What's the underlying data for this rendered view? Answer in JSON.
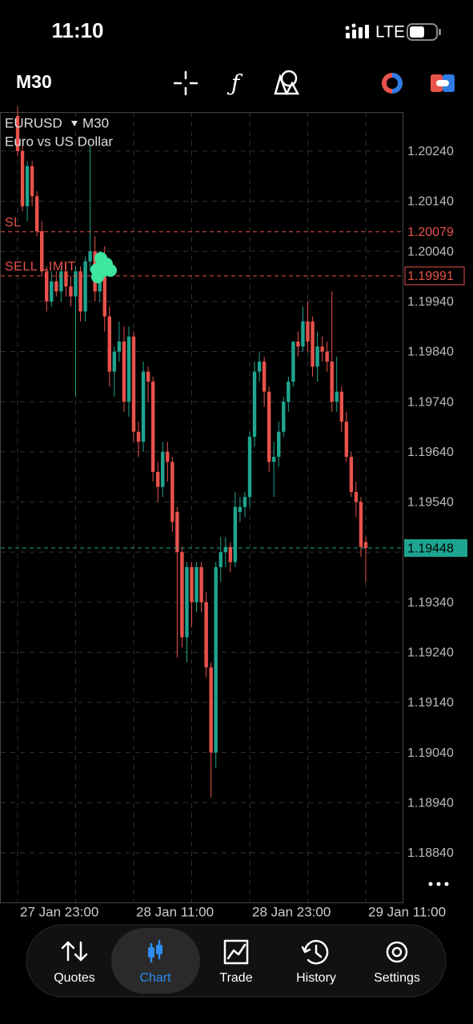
{
  "status_bar": {
    "time": "11:10",
    "network": "LTE"
  },
  "toolbar": {
    "timeframe": "M30"
  },
  "chart_data": {
    "type": "candlestick",
    "symbol": "EURUSD",
    "timeframe": "M30",
    "description": "Euro vs US Dollar",
    "up_color": "#1ea590",
    "down_color": "#e8524b",
    "open": [
      1.2031,
      1.2024,
      1.2013,
      1.2021,
      1.2015,
      1.2008,
      1.2,
      1.1994,
      1.1998,
      1.1996,
      1.2,
      1.1997,
      1.1995,
      1.2,
      1.1992,
      1.2002,
      1.2004,
      1.1996,
      1.2003,
      1.1991,
      1.198,
      1.1984,
      1.1986,
      1.1974,
      1.1987,
      1.1968,
      1.1966,
      1.198,
      1.1978,
      1.196,
      1.1957,
      1.1964,
      1.1962,
      1.1952,
      1.1944,
      1.1927,
      1.1941,
      1.1934,
      1.1941,
      1.1934,
      1.1921,
      1.1904,
      1.1941,
      1.1944,
      1.1945,
      1.1942,
      1.1952,
      1.1953,
      1.1955,
      1.1967,
      1.198,
      1.1982,
      1.1976,
      1.1962,
      1.1963,
      1.1968,
      1.1974,
      1.1978,
      1.1986,
      1.1985,
      1.199,
      1.199,
      1.1981,
      1.1985,
      1.1984,
      1.1982,
      1.1974,
      1.1976,
      1.197,
      1.1963,
      1.1956,
      1.1954,
      1.1946
    ],
    "high": [
      1.2033,
      1.2025,
      1.2022,
      1.2022,
      1.2016,
      1.201,
      1.2001,
      1.2,
      1.2,
      1.2001,
      1.2002,
      1.1999,
      1.2001,
      1.2001,
      1.2003,
      1.2025,
      1.2007,
      1.2004,
      1.2005,
      1.1993,
      1.1985,
      1.199,
      1.1989,
      1.1989,
      1.1988,
      1.197,
      1.1982,
      1.1981,
      1.1979,
      1.1962,
      1.1966,
      1.1966,
      1.1963,
      1.1953,
      1.1945,
      1.1942,
      1.1942,
      1.1942,
      1.1942,
      1.1936,
      1.1922,
      1.1942,
      1.1947,
      1.1947,
      1.1946,
      1.1956,
      1.1955,
      1.1956,
      1.1968,
      1.1982,
      1.1984,
      1.1983,
      1.1977,
      1.1966,
      1.197,
      1.1975,
      1.1979,
      1.1986,
      1.1988,
      1.1993,
      1.1994,
      1.1991,
      1.1988,
      1.1987,
      1.1986,
      1.1996,
      1.1983,
      1.1977,
      1.1972,
      1.1964,
      1.1958,
      1.1955,
      1.1947
    ],
    "low": [
      1.2023,
      1.2012,
      1.201,
      1.2013,
      1.2007,
      1.1999,
      1.1992,
      1.1993,
      1.1995,
      1.1994,
      1.1995,
      1.1993,
      1.1975,
      1.199,
      1.199,
      1.2,
      1.1994,
      1.1994,
      1.1988,
      1.1977,
      1.1975,
      1.1982,
      1.1972,
      1.1971,
      1.1966,
      1.1963,
      1.1964,
      1.1974,
      1.1958,
      1.1954,
      1.1955,
      1.1958,
      1.1948,
      1.1923,
      1.1925,
      1.1922,
      1.1929,
      1.1932,
      1.1932,
      1.1919,
      1.1895,
      1.1901,
      1.1938,
      1.1941,
      1.194,
      1.1941,
      1.195,
      1.1951,
      1.1953,
      1.1965,
      1.1978,
      1.1973,
      1.196,
      1.1955,
      1.1961,
      1.1967,
      1.1972,
      1.1977,
      1.1983,
      1.1984,
      1.1984,
      1.1979,
      1.1978,
      1.1982,
      1.198,
      1.1972,
      1.1972,
      1.1968,
      1.1962,
      1.1955,
      1.1951,
      1.1943,
      1.1938
    ],
    "close": [
      1.2024,
      1.2013,
      1.2021,
      1.2015,
      1.2008,
      1.2,
      1.1994,
      1.1998,
      1.1996,
      1.2,
      1.1997,
      1.1995,
      1.2,
      1.1992,
      1.2002,
      1.2004,
      1.1996,
      1.2003,
      1.1991,
      1.198,
      1.1984,
      1.1986,
      1.1974,
      1.1987,
      1.1968,
      1.1966,
      1.198,
      1.1978,
      1.196,
      1.1957,
      1.1964,
      1.1962,
      1.195,
      1.1944,
      1.1927,
      1.1941,
      1.1934,
      1.1941,
      1.1934,
      1.1921,
      1.1904,
      1.1941,
      1.1944,
      1.1945,
      1.1942,
      1.1953,
      1.1953,
      1.1955,
      1.1967,
      1.198,
      1.1982,
      1.1976,
      1.1962,
      1.1963,
      1.1968,
      1.1974,
      1.1978,
      1.1986,
      1.1985,
      1.199,
      1.1986,
      1.1981,
      1.1985,
      1.1984,
      1.1982,
      1.1974,
      1.1976,
      1.197,
      1.1963,
      1.1956,
      1.1954,
      1.1945,
      1.19448
    ],
    "ylim": [
      1.18741,
      1.20318
    ],
    "yticks": [
      {
        "value": 1.2024,
        "label": "1.20240"
      },
      {
        "value": 1.2014,
        "label": "1.20140"
      },
      {
        "value": 1.2004,
        "label": "1.20040"
      },
      {
        "value": 1.1994,
        "label": "1.19940"
      },
      {
        "value": 1.1984,
        "label": "1.19840"
      },
      {
        "value": 1.1974,
        "label": "1.19740"
      },
      {
        "value": 1.1964,
        "label": "1.19640"
      },
      {
        "value": 1.1954,
        "label": "1.19540"
      },
      {
        "value": 1.1944,
        "label": "1.19440"
      },
      {
        "value": 1.1934,
        "label": "1.19340"
      },
      {
        "value": 1.1924,
        "label": "1.19240"
      },
      {
        "value": 1.1914,
        "label": "1.19140"
      },
      {
        "value": 1.1904,
        "label": "1.19040"
      },
      {
        "value": 1.1894,
        "label": "1.18940"
      },
      {
        "value": 1.1884,
        "label": "1.18840"
      }
    ],
    "xticks": [
      {
        "value": 0,
        "label": "27 Jan 23:00"
      },
      {
        "value": 12,
        "label": null
      },
      {
        "value": 24,
        "label": "28 Jan 11:00"
      },
      {
        "value": 36,
        "label": null
      },
      {
        "value": 48,
        "label": "28 Jan 23:00"
      },
      {
        "value": 60,
        "label": null
      },
      {
        "value": 72,
        "label": "29 Jan 11:00"
      }
    ],
    "grid": true,
    "levels": [
      {
        "name": "SL",
        "value": 1.20079,
        "label": "1.20079",
        "color": "#e8524b",
        "box": "none"
      },
      {
        "name": "SELL LIMIT",
        "value": 1.19991,
        "label": "1.19991",
        "color": "#e8524b",
        "box": "outline"
      },
      {
        "value": 1.19448,
        "label": "1.19448",
        "color": "#1ea590",
        "box": "fill"
      }
    ]
  },
  "nav": {
    "items": [
      "Quotes",
      "Chart",
      "Trade",
      "History",
      "Settings"
    ],
    "active": 1
  }
}
